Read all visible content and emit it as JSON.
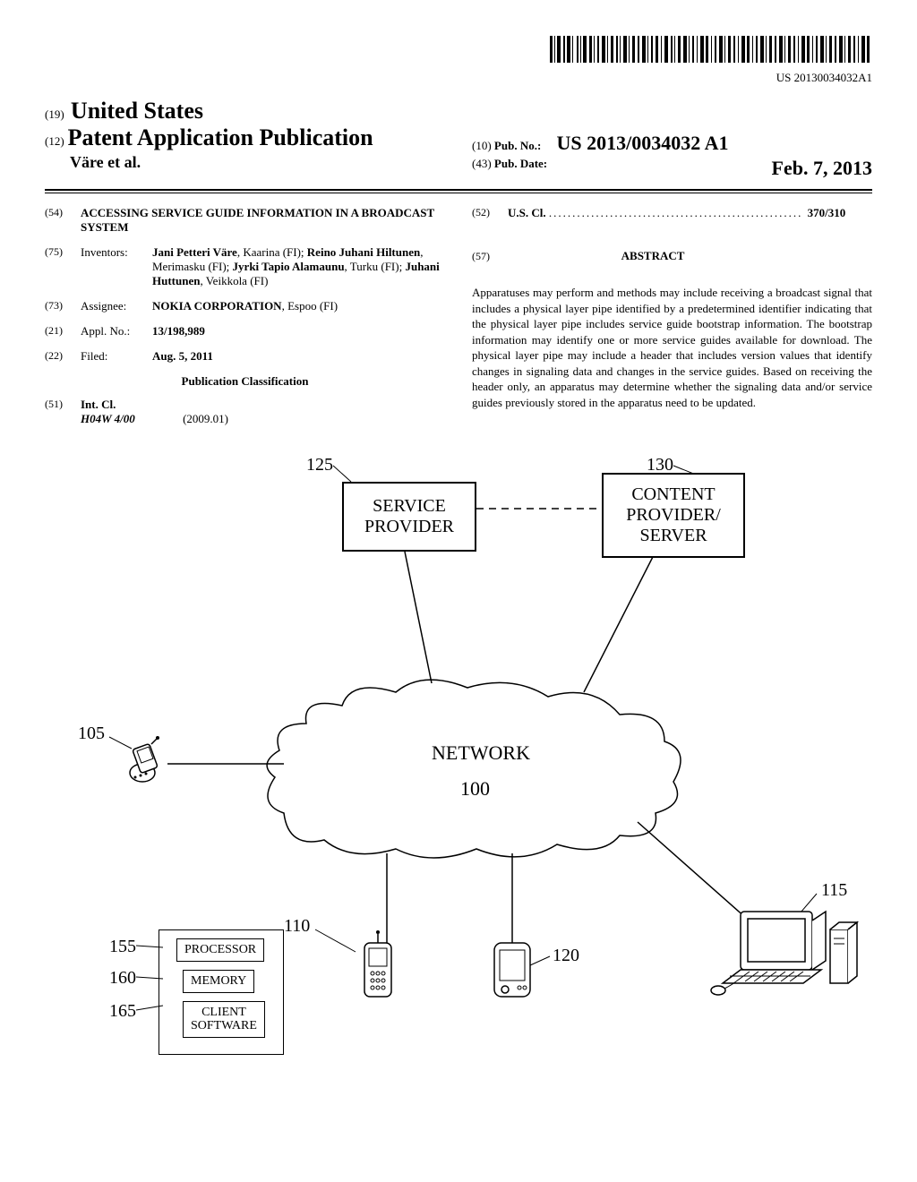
{
  "barcode": {
    "text_below": "US 20130034032A1"
  },
  "header": {
    "code19": "(19)",
    "country": "United States",
    "code12": "(12)",
    "pub_type": "Patent Application Publication",
    "authors_line": "Väre et al.",
    "code10": "(10)",
    "pub_no_label": "Pub. No.:",
    "pub_no": "US 2013/0034032 A1",
    "code43": "(43)",
    "pub_date_label": "Pub. Date:",
    "pub_date": "Feb. 7, 2013"
  },
  "fields": {
    "f54": {
      "code": "(54)",
      "title": "ACCESSING SERVICE GUIDE INFORMATION IN A BROADCAST SYSTEM"
    },
    "f75": {
      "code": "(75)",
      "label": "Inventors:",
      "body_html": "<b>Jani Petteri Väre</b>, Kaarina (FI); <b>Reino Juhani Hiltunen</b>, Merimasku (FI); <b>Jyrki Tapio Alamaunu</b>, Turku (FI); <b>Juhani Huttunen</b>, Veikkola (FI)"
    },
    "f73": {
      "code": "(73)",
      "label": "Assignee:",
      "body_html": "<b>NOKIA CORPORATION</b>, Espoo (FI)"
    },
    "f21": {
      "code": "(21)",
      "label": "Appl. No.:",
      "body": "13/198,989"
    },
    "f22": {
      "code": "(22)",
      "label": "Filed:",
      "body": "Aug. 5, 2011"
    },
    "class_heading": "Publication Classification",
    "f51": {
      "code": "(51)",
      "label": "Int. Cl.",
      "line": "H04W 4/00",
      "date": "(2009.01)"
    },
    "f52": {
      "code": "(52)",
      "label": "U.S. Cl.",
      "value": "370/310"
    },
    "f57": {
      "code": "(57)",
      "heading": "ABSTRACT",
      "text": "Apparatuses may perform and methods may include receiving a broadcast signal that includes a physical layer pipe identified by a predetermined identifier indicating that the physical layer pipe includes service guide bootstrap information. The bootstrap information may identify one or more service guides available for download. The physical layer pipe may include a header that includes version values that identify changes in signaling data and changes in the service guides. Based on receiving the header only, an apparatus may determine whether the signaling data and/or service guides previously stored in the apparatus need to be updated."
    }
  },
  "figure": {
    "labels": {
      "l125": "125",
      "l130": "130",
      "l105": "105",
      "l110": "110",
      "l115": "115",
      "l120": "120",
      "l155": "155",
      "l160": "160",
      "l165": "165",
      "l100": "100"
    },
    "boxes": {
      "service_provider": "SERVICE\nPROVIDER",
      "content_provider": "CONTENT\nPROVIDER/\nSERVER",
      "network": "NETWORK",
      "processor": "PROCESSOR",
      "memory": "MEMORY",
      "client_sw": "CLIENT\nSOFTWARE"
    }
  }
}
